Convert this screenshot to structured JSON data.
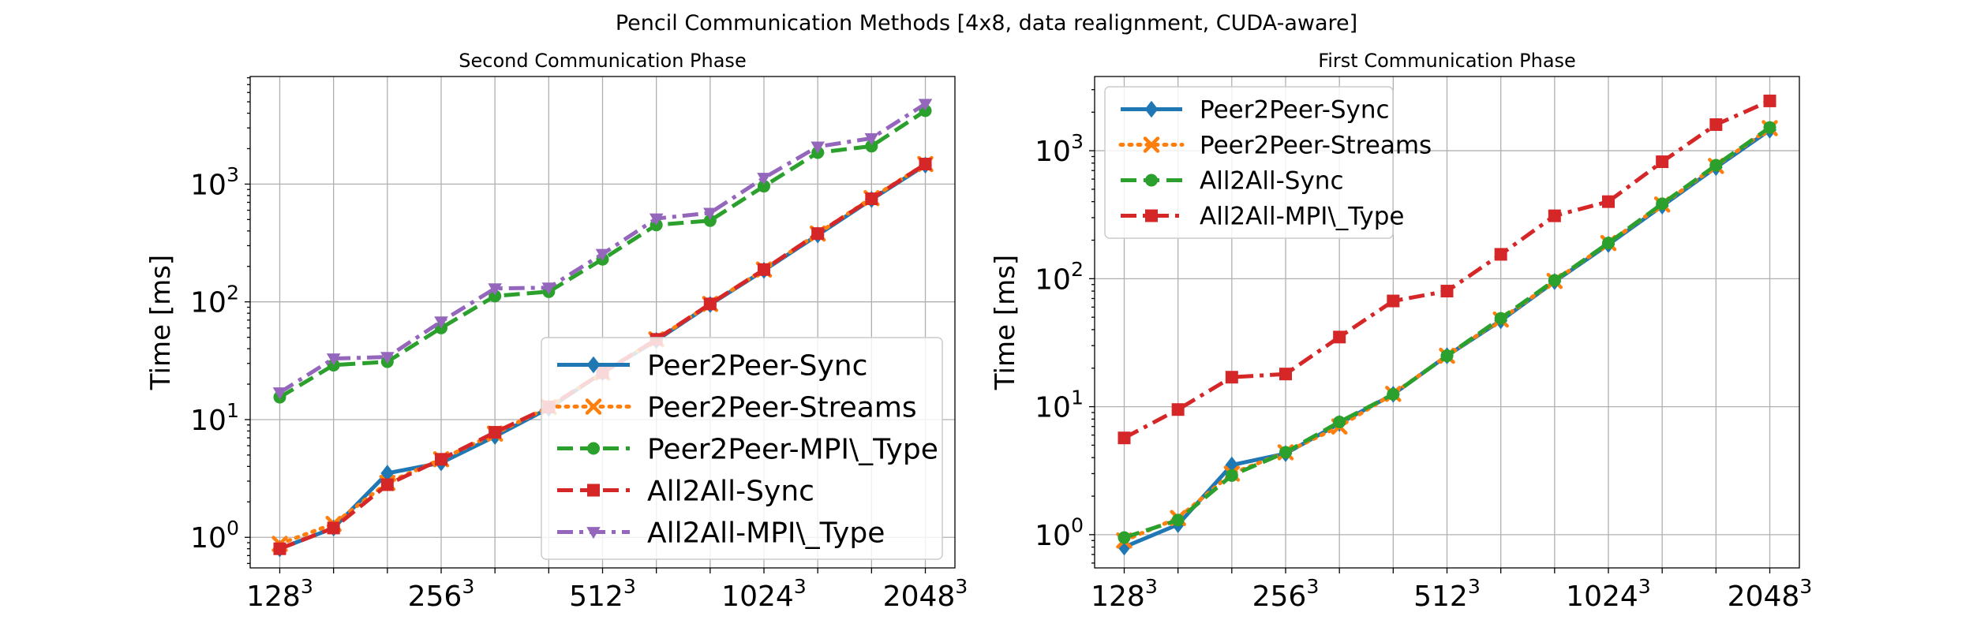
{
  "suptitle": "Pencil Communication Methods [4x8, data realignment, CUDA-aware]",
  "chart_data": [
    {
      "type": "line",
      "title": "Second Communication Phase",
      "xlabel": "",
      "ylabel": "Time [ms]",
      "y_scale": "log",
      "ylim": [
        0.55,
        8200
      ],
      "xlim": [
        -0.55,
        12.55
      ],
      "y_ticks": [
        {
          "v": 1,
          "b": "10",
          "e": "0"
        },
        {
          "v": 10,
          "b": "10",
          "e": "1"
        },
        {
          "v": 100,
          "b": "10",
          "e": "2"
        },
        {
          "v": 1000,
          "b": "10",
          "e": "3"
        }
      ],
      "x_tick_labels": [
        {
          "pos": 0,
          "b": "128",
          "e": "3"
        },
        {
          "pos": 3,
          "b": "256",
          "e": "3"
        },
        {
          "pos": 6,
          "b": "512",
          "e": "3"
        },
        {
          "pos": 9,
          "b": "1024",
          "e": "3"
        },
        {
          "pos": 12,
          "b": "2048",
          "e": "3"
        }
      ],
      "grid": true,
      "legend_position": "lower-right",
      "series": [
        {
          "name": "Peer2Peer-Sync",
          "color": "#1f77b4",
          "linestyle": "solid",
          "marker": "diamond",
          "values": [
            0.8,
            1.2,
            3.5,
            4.3,
            7.2,
            12.5,
            25,
            47,
            95,
            185,
            370,
            740,
            1450
          ]
        },
        {
          "name": "Peer2Peer-Streams",
          "color": "#ff7f0e",
          "linestyle": "dotted",
          "marker": "x",
          "values": [
            0.88,
            1.3,
            2.9,
            4.6,
            7.6,
            12.8,
            25,
            48,
            96,
            188,
            380,
            760,
            1480
          ]
        },
        {
          "name": "Peer2Peer-MPI\\_Type",
          "color": "#2ca02c",
          "linestyle": "dashed",
          "marker": "circle",
          "values": [
            15.5,
            29,
            31,
            60,
            112,
            122,
            230,
            450,
            490,
            960,
            1850,
            2100,
            4200
          ]
        },
        {
          "name": "All2All-Sync",
          "color": "#d62728",
          "linestyle": "dashed",
          "marker": "square",
          "values": [
            0.8,
            1.2,
            2.8,
            4.6,
            7.8,
            12.8,
            25,
            48,
            96,
            188,
            380,
            750,
            1480
          ]
        },
        {
          "name": "All2All-MPI\\_Type",
          "color": "#9467bd",
          "linestyle": "dashdot",
          "marker": "triangle-down",
          "values": [
            17,
            33,
            34,
            68,
            130,
            132,
            255,
            510,
            570,
            1130,
            2080,
            2450,
            4800
          ]
        }
      ]
    },
    {
      "type": "line",
      "title": "First Communication Phase",
      "xlabel": "",
      "ylabel": "Time [ms]",
      "y_scale": "log",
      "ylim": [
        0.55,
        3800
      ],
      "xlim": [
        -0.55,
        12.55
      ],
      "y_ticks": [
        {
          "v": 1,
          "b": "10",
          "e": "0"
        },
        {
          "v": 10,
          "b": "10",
          "e": "1"
        },
        {
          "v": 100,
          "b": "10",
          "e": "2"
        },
        {
          "v": 1000,
          "b": "10",
          "e": "3"
        }
      ],
      "x_tick_labels": [
        {
          "pos": 0,
          "b": "128",
          "e": "3"
        },
        {
          "pos": 3,
          "b": "256",
          "e": "3"
        },
        {
          "pos": 6,
          "b": "512",
          "e": "3"
        },
        {
          "pos": 9,
          "b": "1024",
          "e": "3"
        },
        {
          "pos": 12,
          "b": "2048",
          "e": "3"
        }
      ],
      "grid": true,
      "legend_position": "upper-left",
      "series": [
        {
          "name": "Peer2Peer-Sync",
          "color": "#1f77b4",
          "linestyle": "solid",
          "marker": "diamond",
          "values": [
            0.8,
            1.2,
            3.5,
            4.3,
            7.4,
            12.5,
            25,
            47,
            95,
            185,
            370,
            740,
            1450
          ]
        },
        {
          "name": "Peer2Peer-Streams",
          "color": "#ff7f0e",
          "linestyle": "dotted",
          "marker": "x",
          "values": [
            0.9,
            1.35,
            3.0,
            4.4,
            7.0,
            12.6,
            25,
            48,
            96,
            190,
            380,
            760,
            1500
          ]
        },
        {
          "name": "All2All-Sync",
          "color": "#2ca02c",
          "linestyle": "dashed",
          "marker": "circle",
          "values": [
            0.95,
            1.3,
            2.9,
            4.4,
            7.6,
            12.5,
            25,
            49,
            97,
            190,
            385,
            770,
            1520
          ]
        },
        {
          "name": "All2All-MPI\\_Type",
          "color": "#d62728",
          "linestyle": "dashdot",
          "marker": "square",
          "values": [
            5.7,
            9.5,
            17,
            18,
            35,
            67,
            80,
            155,
            310,
            400,
            820,
            1600,
            2450
          ]
        }
      ]
    }
  ]
}
